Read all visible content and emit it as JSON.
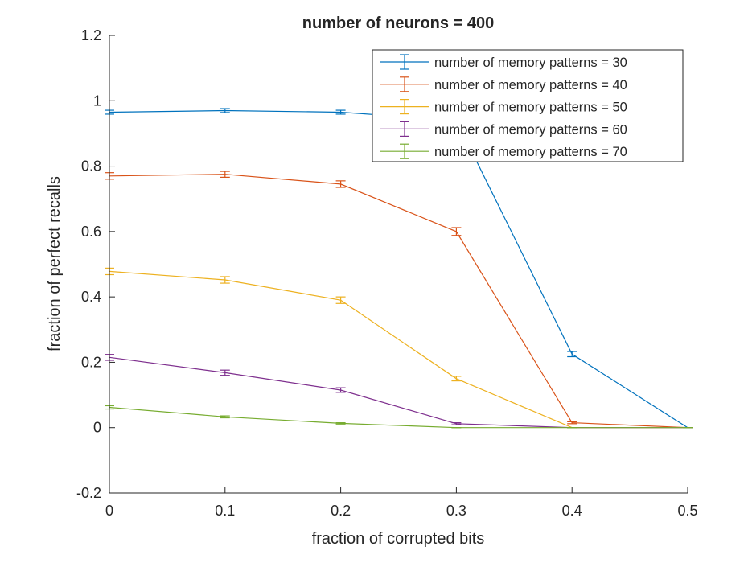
{
  "chart_data": {
    "type": "line",
    "title": "number of neurons = 400",
    "xlabel": "fraction of corrupted bits",
    "ylabel": "fraction of perfect recalls",
    "xlim": [
      0,
      0.5
    ],
    "ylim": [
      -0.2,
      1.2
    ],
    "xticks": [
      "0",
      "0.1",
      "0.2",
      "0.3",
      "0.4",
      "0.5"
    ],
    "yticks": [
      "-0.2",
      "0",
      "0.2",
      "0.4",
      "0.6",
      "0.8",
      "1",
      "1.2"
    ],
    "x": [
      0,
      0.1,
      0.2,
      0.3,
      0.4,
      0.5
    ],
    "grid": false,
    "legend_position": "top-right",
    "series": [
      {
        "name": "number of memory patterns = 30",
        "color": "#0072BD",
        "values": [
          0.965,
          0.97,
          0.965,
          0.94,
          0.225,
          0.0
        ],
        "errors": [
          0.006,
          0.006,
          0.006,
          0.008,
          0.008,
          0.0
        ]
      },
      {
        "name": "number of memory patterns = 40",
        "color": "#D95319",
        "values": [
          0.77,
          0.775,
          0.745,
          0.6,
          0.015,
          0.0
        ],
        "errors": [
          0.01,
          0.009,
          0.01,
          0.012,
          0.003,
          0.0
        ]
      },
      {
        "name": "number of memory patterns = 50",
        "color": "#EDB120",
        "values": [
          0.478,
          0.452,
          0.39,
          0.15,
          0.0,
          0.0
        ],
        "errors": [
          0.01,
          0.01,
          0.01,
          0.007,
          0.0,
          0.0
        ]
      },
      {
        "name": "number of memory patterns = 60",
        "color": "#7E2F8E",
        "values": [
          0.215,
          0.168,
          0.115,
          0.012,
          0.0,
          0.0
        ],
        "errors": [
          0.009,
          0.008,
          0.007,
          0.003,
          0.0,
          0.0
        ]
      },
      {
        "name": "number of memory patterns = 70",
        "color": "#77AC30",
        "values": [
          0.062,
          0.033,
          0.013,
          0.0,
          0.0,
          0.0
        ],
        "errors": [
          0.005,
          0.003,
          0.002,
          0.0,
          0.0,
          0.0
        ]
      }
    ]
  }
}
